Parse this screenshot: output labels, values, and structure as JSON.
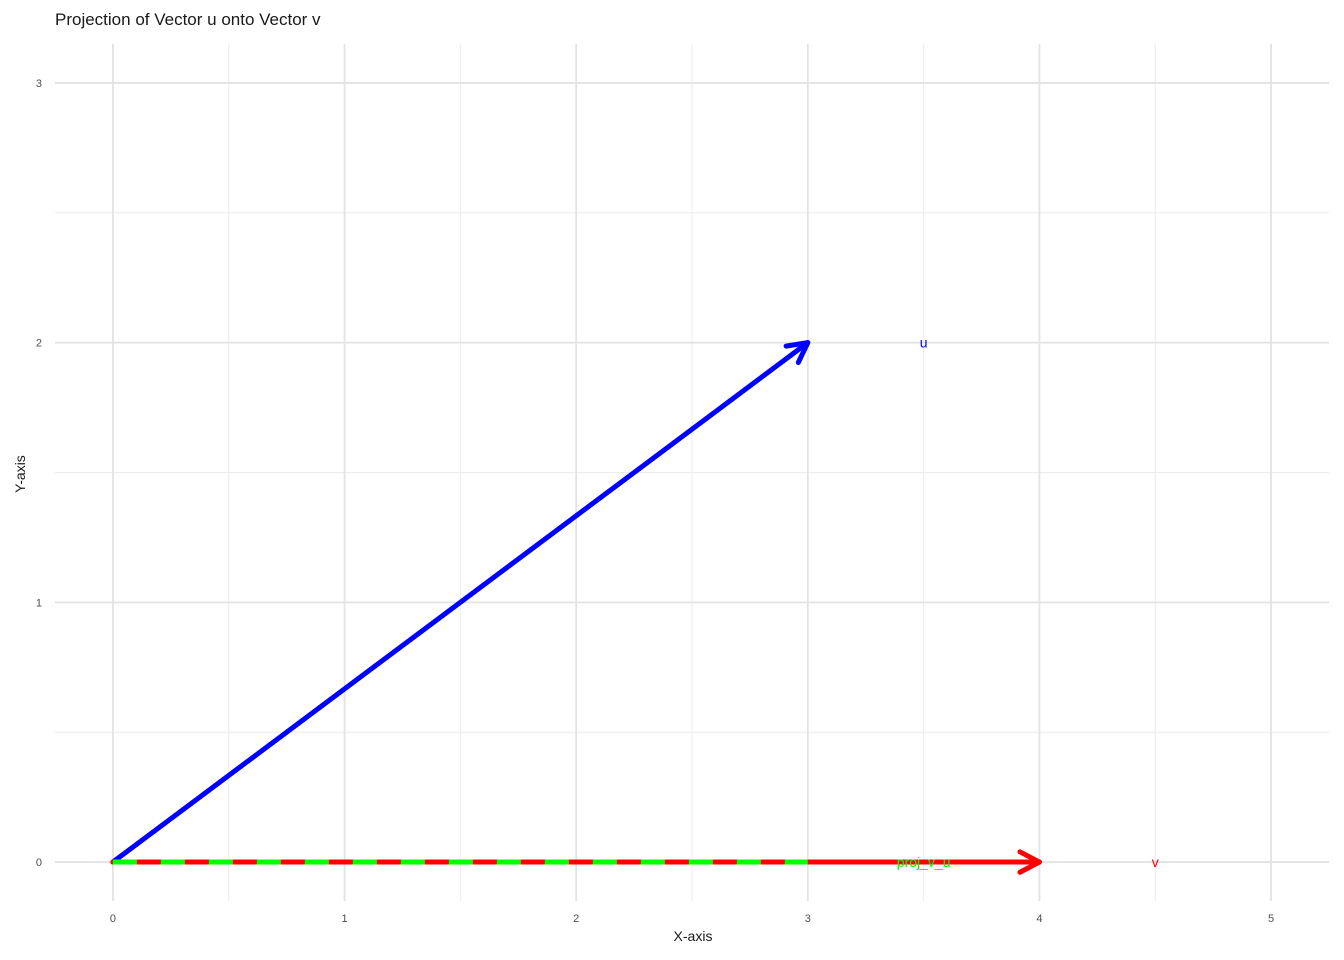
{
  "chart_data": {
    "type": "line",
    "title": "Projection of Vector u onto Vector v",
    "xlabel": "X-axis",
    "ylabel": "Y-axis",
    "xlim": [
      -0.25,
      5.25
    ],
    "ylim": [
      -0.15,
      3.15
    ],
    "x_ticks": [
      0,
      1,
      2,
      3,
      4,
      5
    ],
    "y_ticks": [
      0,
      1,
      2,
      3
    ],
    "grid": true,
    "vectors": [
      {
        "name": "u",
        "from": [
          0,
          0
        ],
        "to": [
          3,
          2
        ],
        "color": "#0000ff",
        "dashed": false,
        "label": "u",
        "label_pos": [
          3.5,
          2
        ]
      },
      {
        "name": "v",
        "from": [
          0,
          0
        ],
        "to": [
          4,
          0
        ],
        "color": "#ff0000",
        "dashed": false,
        "label": "v",
        "label_pos": [
          4.5,
          0
        ]
      },
      {
        "name": "proj_v_u",
        "from": [
          0,
          0
        ],
        "to": [
          3,
          0
        ],
        "color": "#00ff00",
        "dashed": true,
        "label": "proj_v_u",
        "label_pos": [
          3.5,
          0
        ]
      }
    ]
  }
}
